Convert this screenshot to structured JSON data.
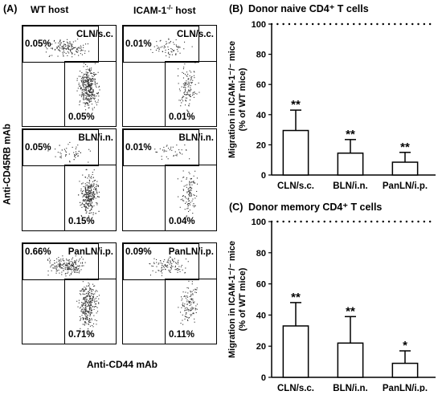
{
  "panel_a": {
    "label": "(A)",
    "col_headers": [
      "WT host",
      "ICAM-1",
      "-/-",
      " host"
    ],
    "y_axis_label": "Anti-CD45RB mAb",
    "x_axis_label": "Anti-CD44 mAb",
    "rows": [
      {
        "site": "CLN/s.c.",
        "wt": {
          "upper": "0.05%",
          "lower": "0.05%"
        },
        "ko": {
          "upper": "0.01%",
          "lower": "0.01%"
        }
      },
      {
        "site": "BLN/i.n.",
        "wt": {
          "upper": "0.05%",
          "lower": "0.15%"
        },
        "ko": {
          "upper": "0.01%",
          "lower": "0.04%"
        }
      },
      {
        "site": "PanLN/i.p.",
        "wt": {
          "upper": "0.66%",
          "lower": "0.71%"
        },
        "ko": {
          "upper": "0.09%",
          "lower": "0.11%"
        }
      }
    ]
  },
  "chart_data": [
    {
      "type": "bar",
      "panel_label": "(B)",
      "title": "Donor naive CD4⁺ T cells",
      "ylabel_line1": "Migration in ICAM-1⁻/⁻ mice",
      "ylabel_line2": "(% of WT mice)",
      "categories": [
        "CLN/s.c.",
        "BLN/i.n.",
        "PanLN/i.p."
      ],
      "values": [
        29.5,
        14.5,
        8.5
      ],
      "errors": [
        13.5,
        9,
        6.5
      ],
      "annotations": [
        "**",
        "**",
        "**"
      ],
      "reference_line": 100,
      "ylim": [
        0,
        100
      ],
      "yticks": [
        0,
        20,
        40,
        60,
        80,
        100
      ]
    },
    {
      "type": "bar",
      "panel_label": "(C)",
      "title": "Donor memory CD4⁺ T cells",
      "ylabel_line1": "Migration in ICAM-1⁻/⁻ mice",
      "ylabel_line2": "(% of WT mice)",
      "categories": [
        "CLN/s.c.",
        "BLN/i.n.",
        "PanLN/i.p."
      ],
      "values": [
        33,
        22,
        9
      ],
      "errors": [
        15,
        17,
        8
      ],
      "annotations": [
        "**",
        "**",
        "*"
      ],
      "reference_line": 100,
      "ylim": [
        0,
        100
      ],
      "yticks": [
        0,
        20,
        40,
        60,
        80,
        100
      ]
    }
  ]
}
